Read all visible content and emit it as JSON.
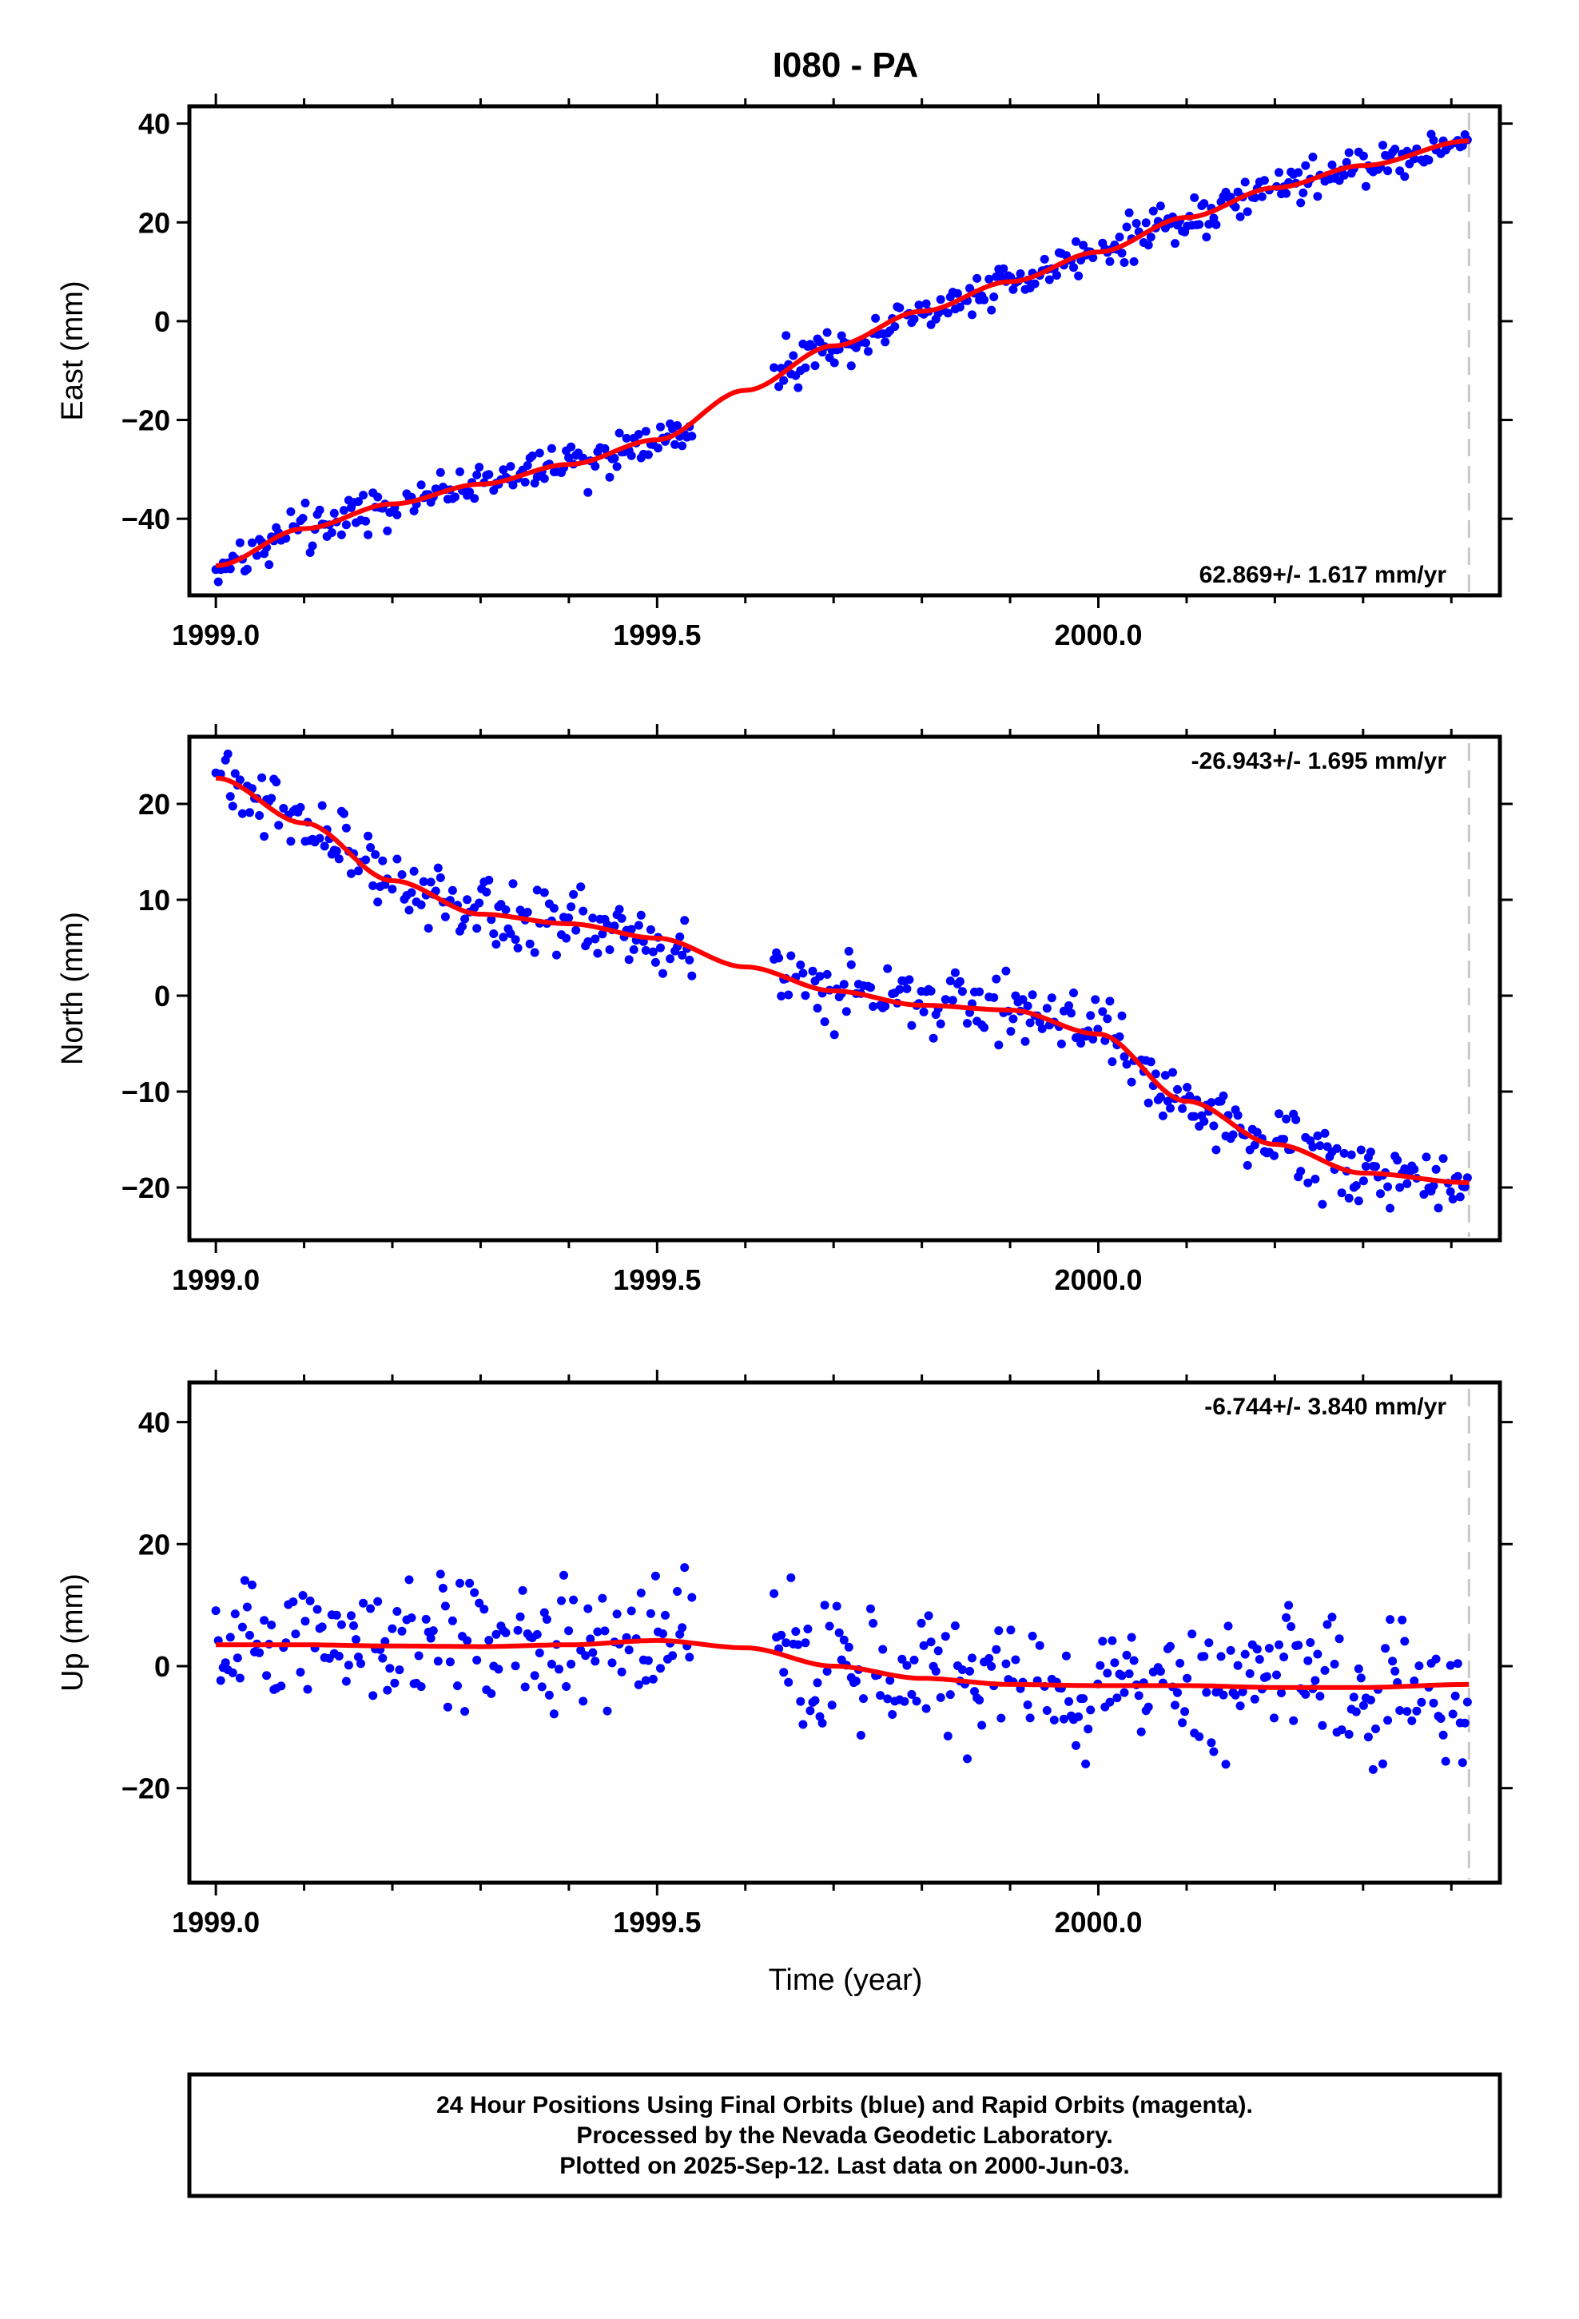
{
  "title": "I080 - PA",
  "xlabel": "Time (year)",
  "footer": [
    "24 Hour Positions Using Final Orbits (blue) and Rapid Orbits (magenta).",
    "Processed by the Nevada Geodetic Laboratory.",
    "Plotted on 2025-Sep-12. Last data on 2000-Jun-03."
  ],
  "colors": {
    "points": "#0000ff",
    "fit": "#ff0000",
    "end_line": "#c8c8c8",
    "frame": "#000000"
  },
  "chart_data": [
    {
      "type": "scatter",
      "component": "East",
      "ylabel": "East (mm)",
      "xlim": [
        1998.97,
        2000.455
      ],
      "ylim": [
        -55.5,
        43.5
      ],
      "xticks": [
        1999.0,
        1999.5,
        2000.0
      ],
      "yticks": [
        -40,
        -20,
        0,
        20,
        40
      ],
      "rate": "62.869+/- 1.617 mm/yr",
      "rate_position": "bottom-right",
      "data_gap": [
        1999.54,
        1999.63
      ],
      "end_line_x": 2000.42,
      "anchors_x": [
        1999.0,
        1999.1,
        1999.2,
        1999.3,
        1999.4,
        1999.5,
        1999.6,
        1999.7,
        1999.8,
        1999.9,
        2000.0,
        2000.1,
        2000.2,
        2000.3,
        2000.42
      ],
      "anchors_y": [
        -49.5,
        -42.0,
        -37.0,
        -33.0,
        -29.0,
        -24.0,
        -14.0,
        -5.0,
        2.0,
        8.0,
        14.0,
        21.0,
        27.0,
        31.5,
        36.5
      ],
      "noise": 2.5
    },
    {
      "type": "scatter",
      "component": "North",
      "ylabel": "North (mm)",
      "xlim": [
        1998.97,
        2000.455
      ],
      "ylim": [
        -25.5,
        27
      ],
      "xticks": [
        1999.0,
        1999.5,
        2000.0
      ],
      "yticks": [
        -20,
        -10,
        0,
        10,
        20
      ],
      "rate": "-26.943+/- 1.695 mm/yr",
      "rate_position": "top-right",
      "data_gap": [
        1999.54,
        1999.63
      ],
      "end_line_x": 2000.42,
      "anchors_x": [
        1999.0,
        1999.1,
        1999.2,
        1999.3,
        1999.4,
        1999.5,
        1999.6,
        1999.7,
        1999.8,
        1999.9,
        2000.0,
        2000.1,
        2000.2,
        2000.3,
        2000.42
      ],
      "anchors_y": [
        22.7,
        18.0,
        12.0,
        8.5,
        7.5,
        6.0,
        3.0,
        0.5,
        -1.0,
        -1.5,
        -4.0,
        -11.0,
        -15.5,
        -18.5,
        -19.5
      ],
      "noise": 2.2
    },
    {
      "type": "scatter",
      "component": "Up",
      "ylabel": "Up (mm)",
      "xlim": [
        1998.97,
        2000.455
      ],
      "ylim": [
        -35.5,
        46.5
      ],
      "xticks": [
        1999.0,
        1999.5,
        2000.0
      ],
      "yticks": [
        -20,
        0,
        20,
        40
      ],
      "rate": "-6.744+/- 3.840 mm/yr",
      "rate_position": "top-right",
      "data_gap": [
        1999.54,
        1999.63
      ],
      "end_line_x": 2000.42,
      "anchors_x": [
        1999.0,
        1999.1,
        1999.2,
        1999.3,
        1999.4,
        1999.5,
        1999.6,
        1999.7,
        1999.8,
        1999.9,
        2000.0,
        2000.1,
        2000.2,
        2000.3,
        2000.42
      ],
      "anchors_y": [
        3.5,
        3.5,
        3.3,
        3.2,
        3.5,
        4.2,
        3.0,
        0.0,
        -2.0,
        -3.0,
        -3.2,
        -3.2,
        -3.5,
        -3.5,
        -3.0
      ],
      "noise": 7.0
    }
  ]
}
